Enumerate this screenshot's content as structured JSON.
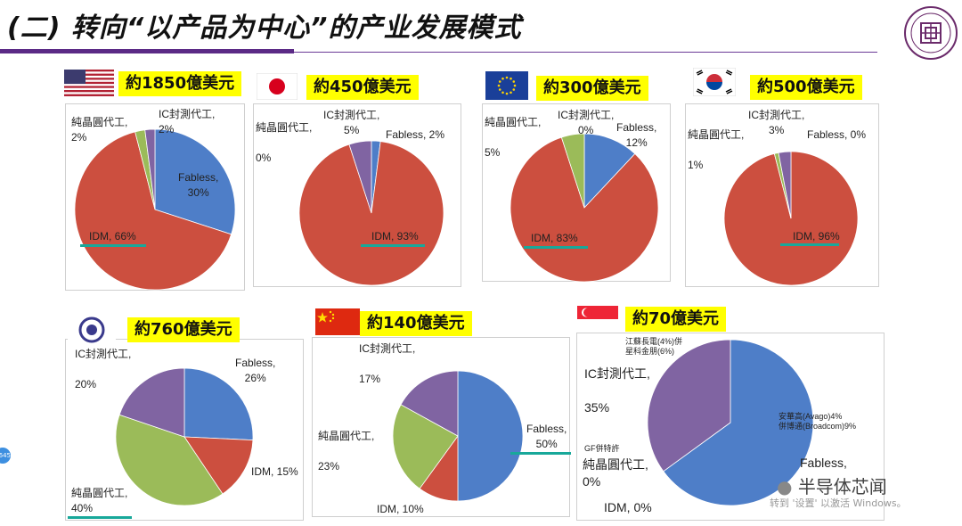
{
  "header": {
    "title": "(二) 转向“以产品为中心”的产业发展模式"
  },
  "watermark": {
    "brand": "半导体芯闻",
    "activate": "转到 '设置' 以激活 Windows。"
  },
  "side_badge": "645",
  "colors": {
    "fabless": "#4e7ec8",
    "idm": "#cc4f3f",
    "foundry": "#9bbb59",
    "osat": "#8064a2",
    "accent_underline": "#18a89a",
    "highlight": "#ffff00",
    "rule": "#5b2a86"
  },
  "chart_data": [
    {
      "type": "pie",
      "flag": "us-flag-icon",
      "amount_label": "約1850億美元",
      "slices": [
        {
          "name": "Fabless",
          "value": 30,
          "color": "#4e7ec8"
        },
        {
          "name": "IDM",
          "value": 66,
          "color": "#cc4f3f"
        },
        {
          "name": "純晶圓代工",
          "value": 2,
          "color": "#9bbb59"
        },
        {
          "name": "IC封測代工",
          "value": 2,
          "color": "#8064a2"
        }
      ],
      "labels": [
        {
          "text": "IC封測代工,",
          "line2": "2%"
        },
        {
          "text": "純晶圓代工,",
          "line2": "2%"
        },
        {
          "text": "Fabless,",
          "line2": "30%"
        },
        {
          "text": "IDM, 66%"
        }
      ]
    },
    {
      "type": "pie",
      "flag": "japan-flag-icon",
      "amount_label": "約450億美元",
      "slices": [
        {
          "name": "Fabless",
          "value": 2,
          "color": "#4e7ec8"
        },
        {
          "name": "IDM",
          "value": 93,
          "color": "#cc4f3f"
        },
        {
          "name": "純晶圓代工",
          "value": 0,
          "color": "#9bbb59"
        },
        {
          "name": "IC封測代工",
          "value": 5,
          "color": "#8064a2"
        }
      ],
      "labels": [
        {
          "text": "IC封測代工,",
          "line2": "5%"
        },
        {
          "text": "純晶圓代工,",
          "line2": "0%"
        },
        {
          "text": "Fabless, 2%"
        },
        {
          "text": "IDM, 93%"
        }
      ]
    },
    {
      "type": "pie",
      "flag": "eu-flag-icon",
      "amount_label": "約300億美元",
      "slices": [
        {
          "name": "Fabless",
          "value": 12,
          "color": "#4e7ec8"
        },
        {
          "name": "IDM",
          "value": 83,
          "color": "#cc4f3f"
        },
        {
          "name": "純晶圓代工",
          "value": 5,
          "color": "#9bbb59"
        },
        {
          "name": "IC封測代工",
          "value": 0,
          "color": "#8064a2"
        }
      ],
      "labels": [
        {
          "text": "IC封測代工,",
          "line2": "0%"
        },
        {
          "text": "純晶圓代工,",
          "line2": "5%"
        },
        {
          "text": "Fabless,",
          "line2": "12%"
        },
        {
          "text": "IDM, 83%"
        }
      ]
    },
    {
      "type": "pie",
      "flag": "korea-flag-icon",
      "amount_label": "約500億美元",
      "slices": [
        {
          "name": "Fabless",
          "value": 0,
          "color": "#4e7ec8"
        },
        {
          "name": "IDM",
          "value": 96,
          "color": "#cc4f3f"
        },
        {
          "name": "純晶圓代工",
          "value": 1,
          "color": "#9bbb59"
        },
        {
          "name": "IC封測代工",
          "value": 3,
          "color": "#8064a2"
        }
      ],
      "labels": [
        {
          "text": "IC封測代工,",
          "line2": "3%"
        },
        {
          "text": "純晶圓代工,",
          "line2": "1%"
        },
        {
          "text": "Fabless, 0%"
        },
        {
          "text": "IDM, 96%"
        }
      ]
    },
    {
      "type": "pie",
      "flag": "taiwan-flag-icon",
      "amount_label": "約760億美元",
      "slices": [
        {
          "name": "Fabless",
          "value": 26,
          "color": "#4e7ec8"
        },
        {
          "name": "IDM",
          "value": 15,
          "color": "#cc4f3f"
        },
        {
          "name": "純晶圓代工",
          "value": 40,
          "color": "#9bbb59"
        },
        {
          "name": "IC封測代工",
          "value": 20,
          "color": "#8064a2"
        }
      ],
      "labels": [
        {
          "text": "IC封測代工,",
          "line2": "20%"
        },
        {
          "text": "Fabless,",
          "line2": "26%"
        },
        {
          "text": "IDM, 15%"
        },
        {
          "text": "純晶圓代工,",
          "line2": "40%"
        }
      ]
    },
    {
      "type": "pie",
      "flag": "china-flag-icon",
      "amount_label": "約140億美元",
      "slices": [
        {
          "name": "Fabless",
          "value": 50,
          "color": "#4e7ec8"
        },
        {
          "name": "IDM",
          "value": 10,
          "color": "#cc4f3f"
        },
        {
          "name": "純晶圓代工",
          "value": 23,
          "color": "#9bbb59"
        },
        {
          "name": "IC封測代工",
          "value": 17,
          "color": "#8064a2"
        }
      ],
      "labels": [
        {
          "text": "IC封測代工,",
          "line2": "17%"
        },
        {
          "text": "純晶圓代工,",
          "line2": "23%"
        },
        {
          "text": "Fabless,",
          "line2": "50%"
        },
        {
          "text": "IDM, 10%"
        }
      ]
    },
    {
      "type": "pie",
      "flag": "singapore-flag-icon",
      "amount_label": "約70億美元",
      "slices": [
        {
          "name": "Fabless",
          "value": 65,
          "color": "#4e7ec8"
        },
        {
          "name": "IDM",
          "value": 0,
          "color": "#cc4f3f"
        },
        {
          "name": "純晶圓代工",
          "value": 0,
          "color": "#9bbb59"
        },
        {
          "name": "IC封測代工",
          "value": 35,
          "color": "#8064a2"
        }
      ],
      "labels": [
        {
          "text": "江蘇長電(4%)併",
          "line2": "星科金朋(6%)"
        },
        {
          "text": "IC封測代工,",
          "line2": "35%"
        },
        {
          "text": "安華高(Avago)4%",
          "line2": "併博通(Broadcom)9%"
        },
        {
          "text": "GF併特許"
        },
        {
          "text": "純晶圓代工,",
          "line2": "0%"
        },
        {
          "text": "IDM, 0%"
        },
        {
          "text": "Fabless,"
        }
      ]
    }
  ]
}
